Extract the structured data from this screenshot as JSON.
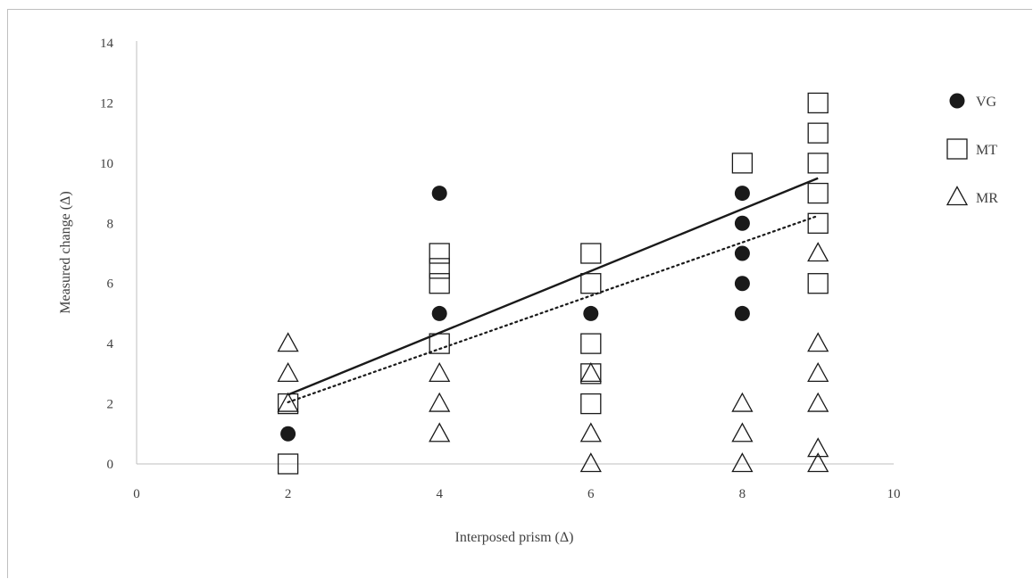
{
  "chart_data": {
    "type": "scatter",
    "xlabel": "Interposed prism (Δ)",
    "ylabel": "Measured change (Δ)",
    "xlim": [
      0,
      10
    ],
    "ylim": [
      0,
      14
    ],
    "x_ticks": [
      "0",
      "2",
      "4",
      "6",
      "8",
      "10"
    ],
    "y_ticks": [
      "0",
      "2",
      "4",
      "6",
      "8",
      "10",
      "12",
      "14"
    ],
    "grid": false,
    "legend": "right",
    "series": [
      {
        "name": "VG",
        "marker": "filled-circle",
        "color": "#1a1a1a",
        "points": [
          [
            2,
            1
          ],
          [
            4,
            9
          ],
          [
            4,
            5
          ],
          [
            6,
            5
          ],
          [
            8,
            9
          ],
          [
            8,
            8
          ],
          [
            8,
            7
          ],
          [
            8,
            6
          ],
          [
            8,
            5
          ]
        ]
      },
      {
        "name": "MT",
        "marker": "open-square",
        "color": "#1a1a1a",
        "points": [
          [
            2,
            2
          ],
          [
            2,
            0
          ],
          [
            4,
            7
          ],
          [
            4,
            6.5
          ],
          [
            4,
            6
          ],
          [
            4,
            4
          ],
          [
            6,
            7
          ],
          [
            6,
            6
          ],
          [
            6,
            4
          ],
          [
            6,
            3
          ],
          [
            6,
            2
          ],
          [
            8,
            10
          ],
          [
            9,
            12
          ],
          [
            9,
            11
          ],
          [
            9,
            10
          ],
          [
            9,
            9
          ],
          [
            9,
            8
          ],
          [
            9,
            6
          ]
        ]
      },
      {
        "name": "MR",
        "marker": "open-triangle",
        "color": "#1a1a1a",
        "points": [
          [
            2,
            4
          ],
          [
            2,
            3
          ],
          [
            2,
            2
          ],
          [
            4,
            3
          ],
          [
            4,
            2
          ],
          [
            4,
            1
          ],
          [
            6,
            3
          ],
          [
            6,
            1
          ],
          [
            6,
            0
          ],
          [
            8,
            2
          ],
          [
            8,
            1
          ],
          [
            8,
            0
          ],
          [
            9,
            7
          ],
          [
            9,
            4
          ],
          [
            9,
            3
          ],
          [
            9,
            2
          ],
          [
            9,
            0.5
          ],
          [
            9,
            0
          ]
        ]
      }
    ],
    "trendlines": [
      {
        "style": "solid",
        "x": [
          2,
          9
        ],
        "y": [
          2.3,
          9.5
        ]
      },
      {
        "style": "dotted",
        "x": [
          2,
          9
        ],
        "y": [
          2.05,
          8.25
        ]
      }
    ]
  }
}
